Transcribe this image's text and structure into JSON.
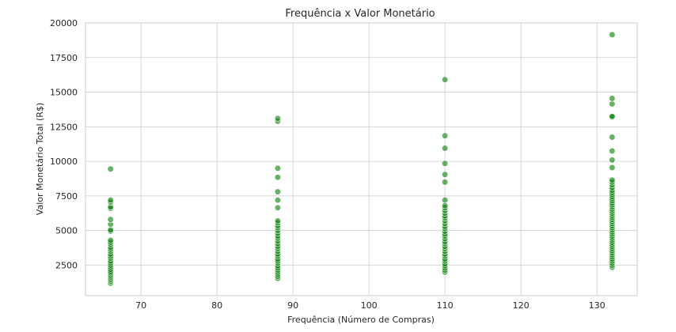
{
  "chart_data": {
    "type": "scatter",
    "title": "Frequência x Valor Monetário",
    "xlabel": "Frequência (Número de Compras)",
    "ylabel": "Valor Monetário Total (R$)",
    "xlim": [
      62.7,
      135.3
    ],
    "ylim": [
      300,
      20000
    ],
    "xticks": [
      70,
      80,
      90,
      100,
      110,
      120,
      130
    ],
    "yticks": [
      2500,
      5000,
      7500,
      10000,
      12500,
      15000,
      17500,
      20000
    ],
    "ytick_labels": [
      "2500",
      "5000",
      "7500",
      "10000",
      "12500",
      "15000",
      "17500",
      "20000"
    ],
    "grid": true,
    "color": "#008000",
    "series": [
      {
        "x": 66,
        "y": [
          1200,
          1350,
          1450,
          1550,
          1650,
          1750,
          1850,
          1950,
          2050,
          2200,
          2350,
          2500,
          2650,
          2800,
          3000,
          3150,
          3300,
          3500,
          3650,
          3800,
          4000,
          4150,
          4300,
          4950,
          5050,
          5450,
          5800,
          6600,
          6700,
          7050,
          7200,
          9450
        ]
      },
      {
        "x": 88,
        "y": [
          1550,
          1700,
          1850,
          2000,
          2150,
          2300,
          2450,
          2650,
          2800,
          2950,
          3150,
          3300,
          3500,
          3700,
          3850,
          4050,
          4250,
          4450,
          4600,
          4800,
          5000,
          5200,
          5350,
          5550,
          5700,
          6650,
          7200,
          7800,
          8850,
          9500,
          12900,
          13100
        ]
      },
      {
        "x": 110,
        "y": [
          2000,
          2150,
          2300,
          2450,
          2600,
          2800,
          2950,
          3150,
          3300,
          3500,
          3700,
          3850,
          4050,
          4200,
          4400,
          4600,
          4750,
          4950,
          5150,
          5300,
          5500,
          5700,
          5900,
          6050,
          6250,
          6450,
          6650,
          6800,
          7200,
          8500,
          9050,
          9850,
          10950,
          11850,
          15900
        ]
      },
      {
        "x": 132,
        "y": [
          2350,
          2500,
          2650,
          2800,
          2950,
          3100,
          3250,
          3400,
          3550,
          3700,
          3850,
          4000,
          4150,
          4300,
          4450,
          4600,
          4750,
          4900,
          5050,
          5200,
          5350,
          5500,
          5650,
          5800,
          5950,
          6100,
          6250,
          6400,
          6550,
          6700,
          6850,
          7000,
          7150,
          7300,
          7450,
          7600,
          7750,
          7900,
          8100,
          8300,
          8500,
          8650,
          9550,
          10100,
          10750,
          11750,
          13200,
          13250,
          14150,
          14550,
          19150
        ]
      }
    ]
  }
}
